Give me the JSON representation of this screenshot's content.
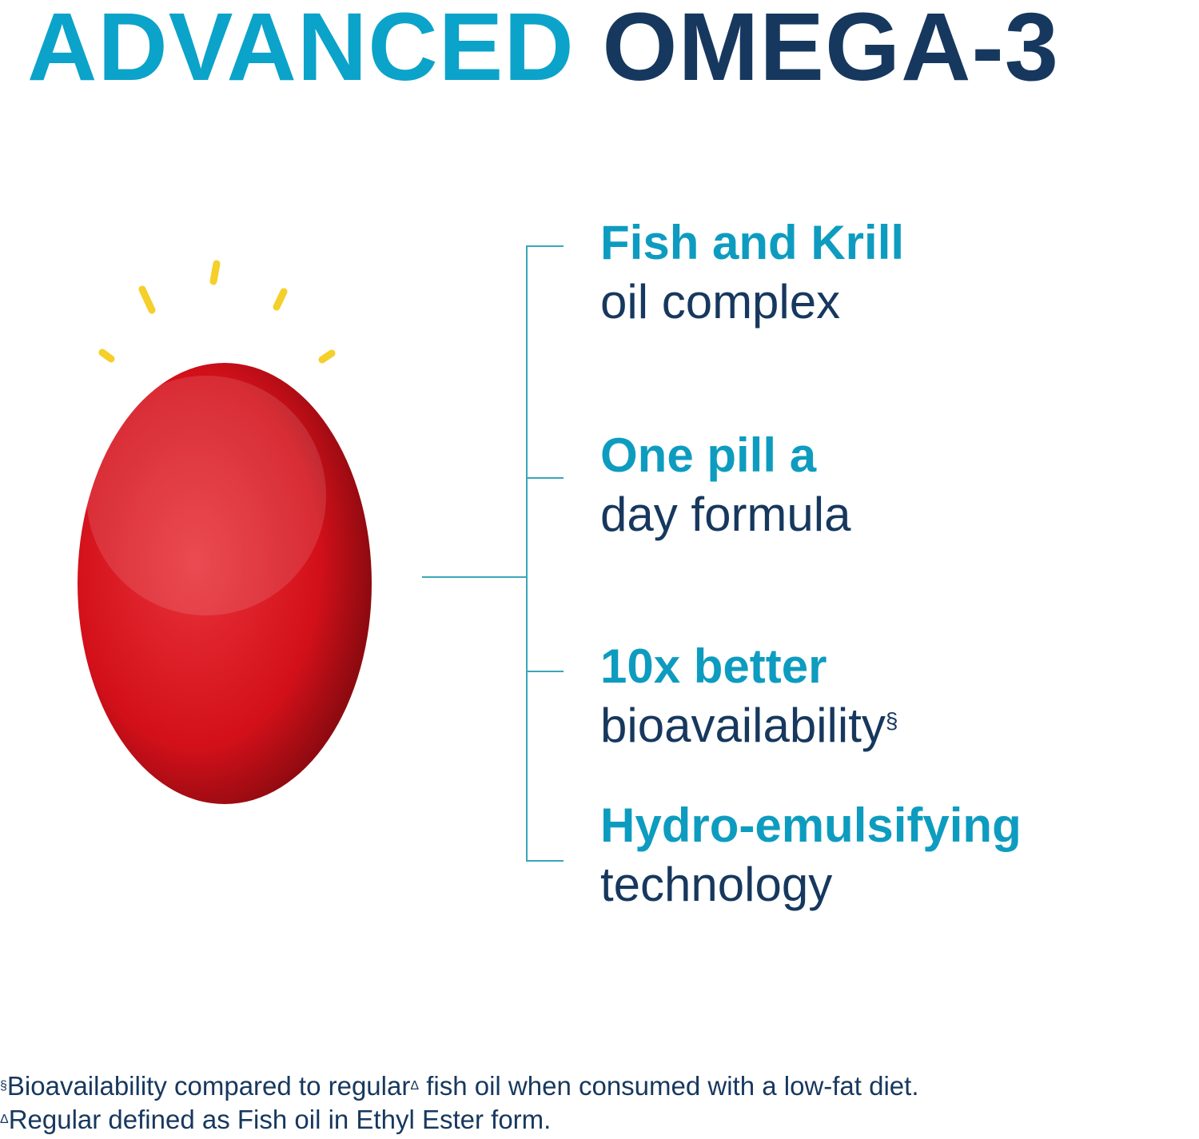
{
  "title": {
    "part1": "ADVANCED",
    "part2": "OMEGA-3"
  },
  "colors": {
    "accent": "#0ba3c9",
    "navy": "#17385e",
    "pill": "#d8121b",
    "rays": "#f5cf2a",
    "bracket": "#3aa6b9"
  },
  "features": [
    {
      "heading": "Fish and Krill",
      "sub": "oil complex",
      "mark": ""
    },
    {
      "heading": "One pill a",
      "sub": "day formula",
      "mark": ""
    },
    {
      "heading": "10x better",
      "sub": "bioavailability",
      "mark": "§"
    },
    {
      "heading": "Hydro-emulsifying",
      "sub": "technology",
      "mark": ""
    }
  ],
  "footnotes": [
    {
      "mark": "§",
      "text_a": "Bioavailability compared to regular",
      "mark2": "Δ",
      "text_b": " fish oil when consumed with a low-fat diet."
    },
    {
      "mark": "Δ",
      "text_a": "Regular defined as Fish oil in Ethyl Ester form."
    }
  ]
}
